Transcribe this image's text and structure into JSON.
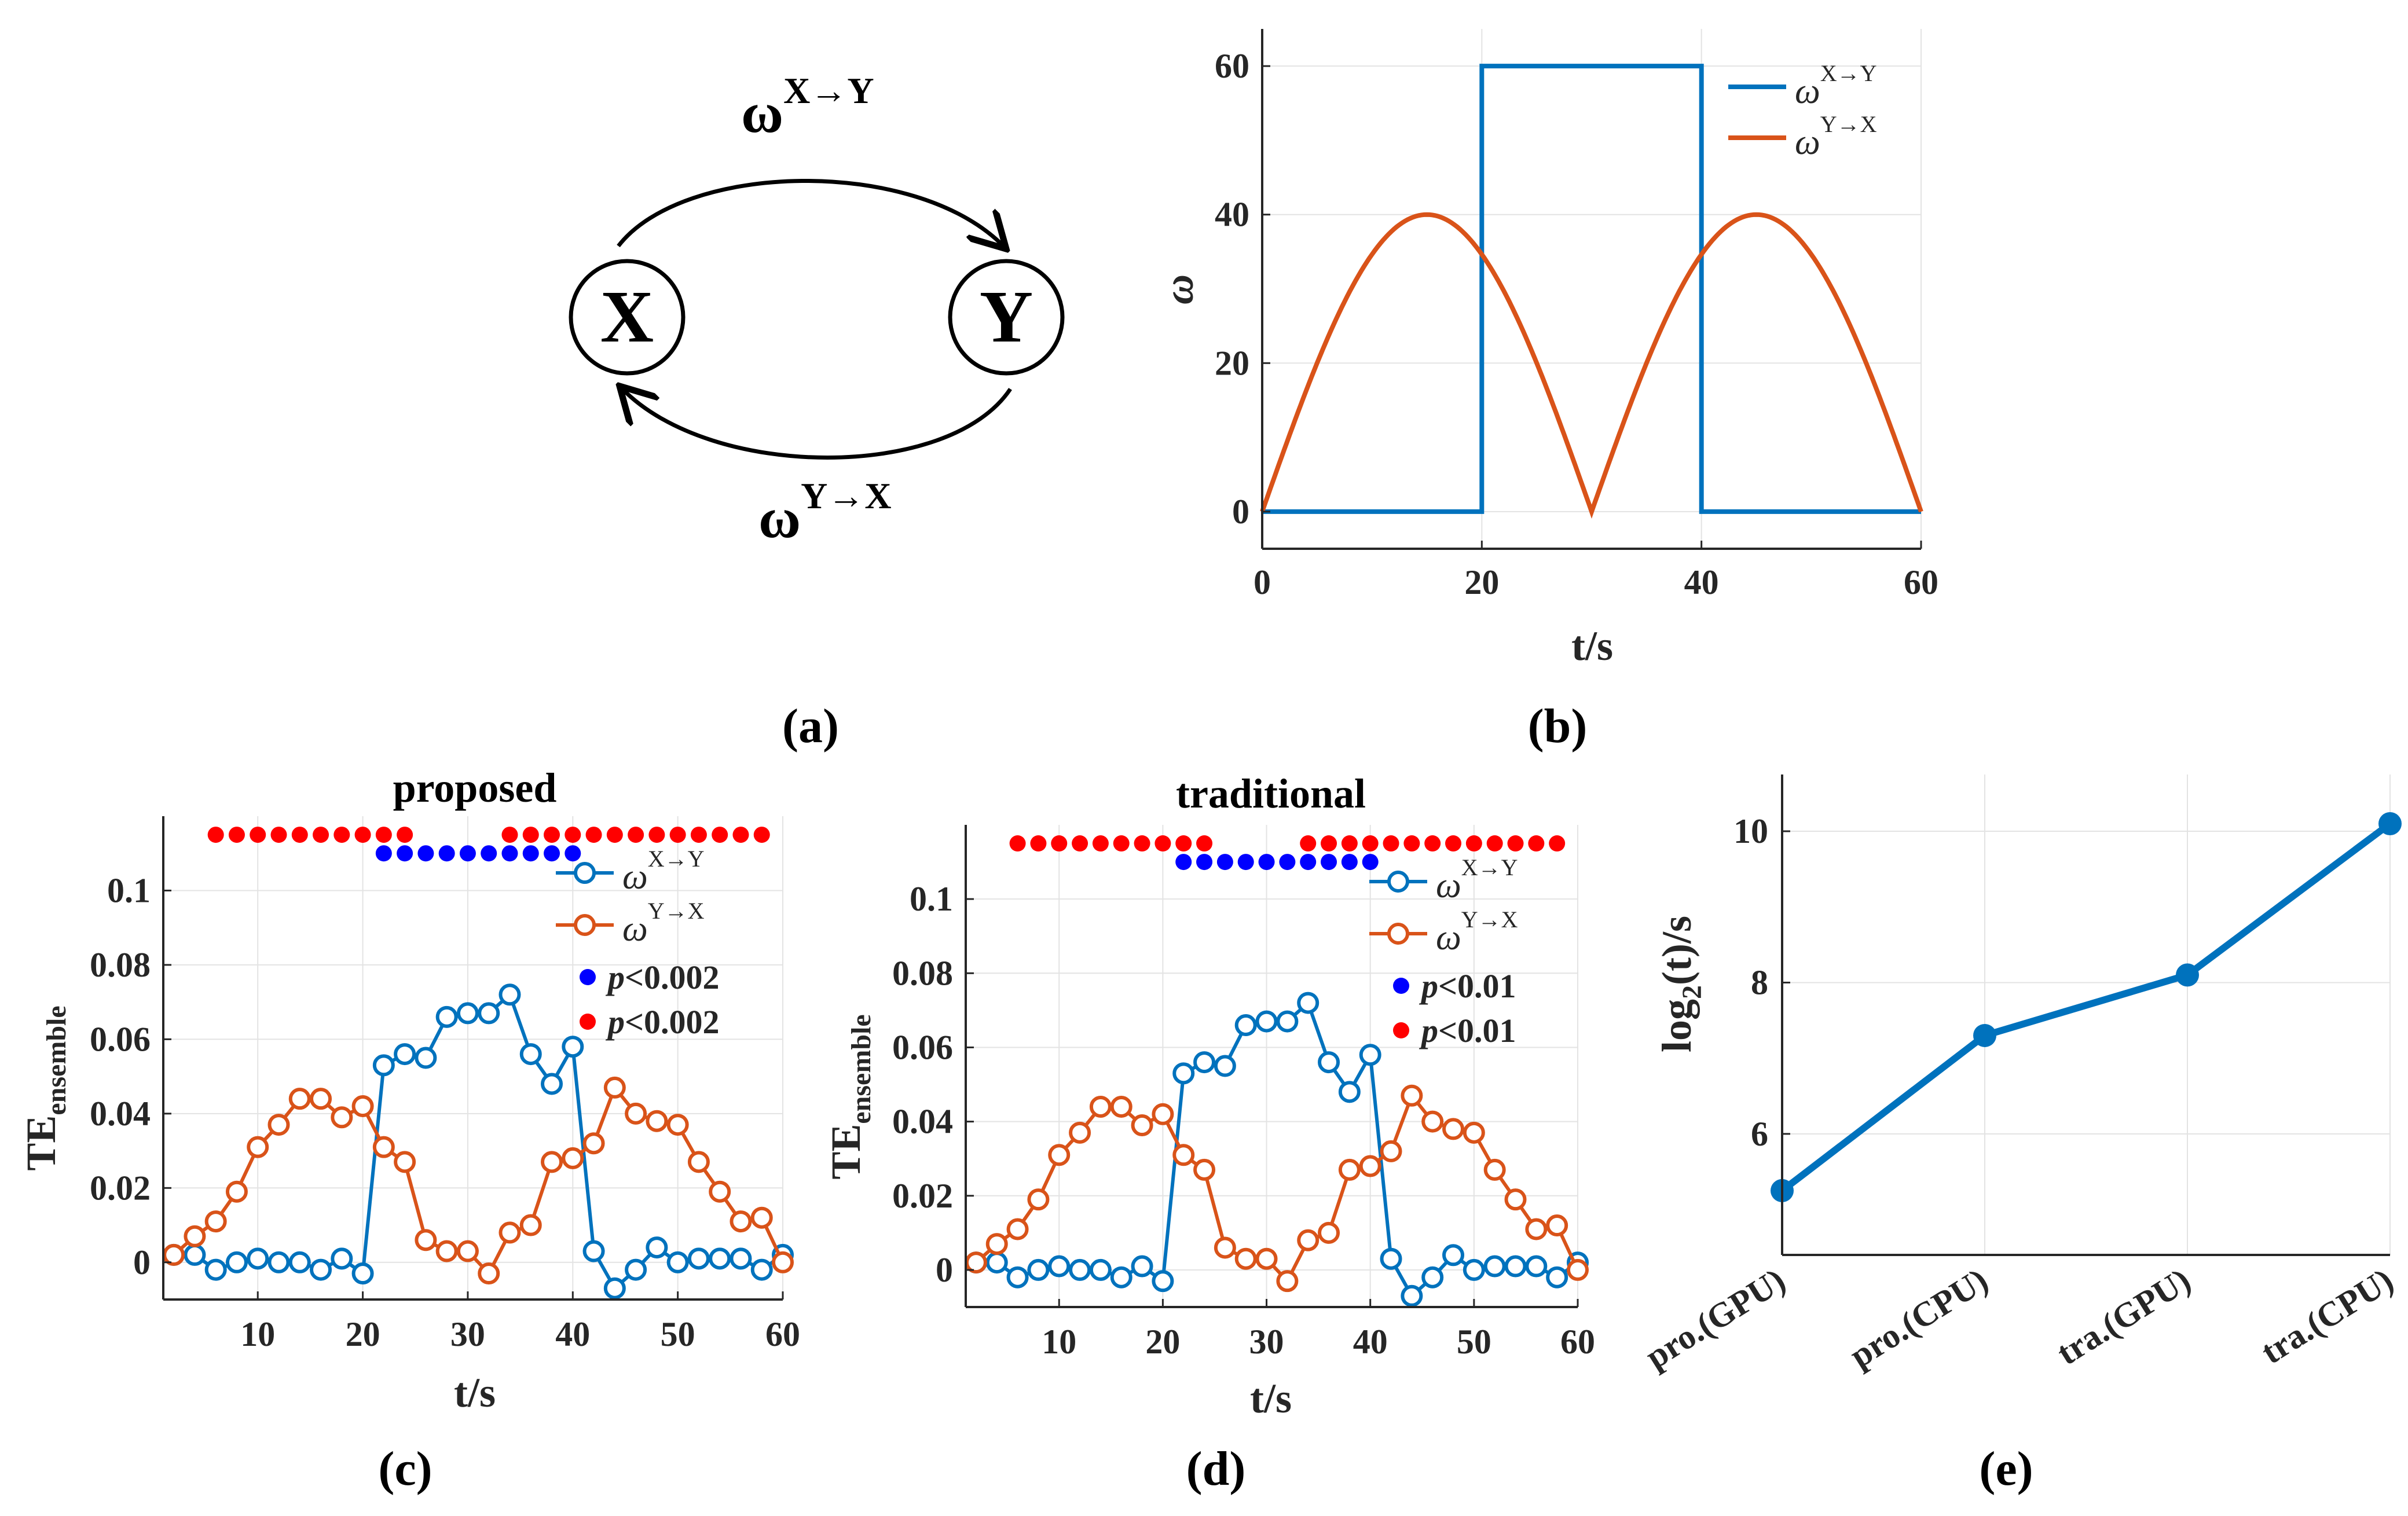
{
  "colors": {
    "blue": "#0072BD",
    "orange": "#D95319",
    "dot_blue": "#0000FF",
    "dot_red": "#FF0000"
  },
  "diagram": {
    "node_x": "X",
    "node_y": "Y",
    "label_top": {
      "base": "ω",
      "sup": "X→Y"
    },
    "label_bottom": {
      "base": "ω",
      "sup": "Y→X"
    },
    "caption": "(a)"
  },
  "chart_data": [
    {
      "id": "b",
      "type": "line",
      "caption": "(b)",
      "title": "",
      "xlabel": "t/s",
      "ylabel": "ω",
      "xlim": [
        0,
        60
      ],
      "ylim": [
        -5,
        65
      ],
      "xticks": [
        0,
        20,
        40,
        60
      ],
      "yticks": [
        0,
        20,
        40,
        60
      ],
      "series": [
        {
          "name_base": "ω",
          "name_sup": "X→Y",
          "color": "#0072BD",
          "x": [
            0,
            20,
            20,
            40,
            40,
            60
          ],
          "y": [
            0,
            0,
            60,
            60,
            0,
            0
          ]
        },
        {
          "name_base": "ω",
          "name_sup": "Y→X",
          "color": "#D95319",
          "function": "40*|sin(pi*t/30)|",
          "x_range": [
            0,
            60
          ]
        }
      ]
    },
    {
      "id": "c",
      "type": "line",
      "caption": "(c)",
      "title": "proposed",
      "xlabel": "t/s",
      "ylabel_base": "TE",
      "ylabel_sub": "ensemble",
      "xlim": [
        1,
        60
      ],
      "ylim": [
        -0.01,
        0.12
      ],
      "xticks": [
        10,
        20,
        30,
        40,
        50,
        60
      ],
      "yticks": [
        0,
        0.02,
        0.04,
        0.06,
        0.08,
        0.1
      ],
      "ytick_labels": [
        "0",
        "0.02",
        "0.04",
        "0.06",
        "0.08",
        "0.1"
      ],
      "x": [
        2,
        4,
        6,
        8,
        10,
        12,
        14,
        16,
        18,
        20,
        22,
        24,
        26,
        28,
        30,
        32,
        34,
        36,
        38,
        40,
        42,
        44,
        46,
        48,
        50,
        52,
        54,
        56,
        58,
        60
      ],
      "series": [
        {
          "name_base": "ω",
          "name_sup": "X→Y",
          "color": "#0072BD",
          "values": [
            0.002,
            0.002,
            -0.002,
            0,
            0.001,
            0,
            0,
            -0.002,
            0.001,
            -0.003,
            0.053,
            0.056,
            0.055,
            0.066,
            0.067,
            0.067,
            0.072,
            0.056,
            0.048,
            0.058,
            0.003,
            -0.007,
            -0.002,
            0.004,
            0,
            0.001,
            0.001,
            0.001,
            -0.002,
            0.002
          ]
        },
        {
          "name_base": "ω",
          "name_sup": "Y→X",
          "color": "#D95319",
          "values": [
            0.002,
            0.007,
            0.011,
            0.019,
            0.031,
            0.037,
            0.044,
            0.044,
            0.039,
            0.042,
            0.031,
            0.027,
            0.006,
            0.003,
            0.003,
            -0.003,
            0.008,
            0.01,
            0.027,
            0.028,
            0.032,
            0.047,
            0.04,
            0.038,
            0.037,
            0.027,
            0.019,
            0.011,
            0.012,
            0
          ]
        }
      ],
      "sig_legend": [
        {
          "label_italic": "p",
          "label_rest": "<0.002",
          "color": "#0000FF"
        },
        {
          "label_italic": "p",
          "label_rest": "<0.002",
          "color": "#FF0000"
        }
      ],
      "sig_red_x": [
        6,
        8,
        10,
        12,
        14,
        16,
        18,
        20,
        22,
        24,
        34,
        36,
        38,
        40,
        42,
        44,
        46,
        48,
        50,
        52,
        54,
        56,
        58
      ],
      "sig_red_y": 0.115,
      "sig_blue_x": [
        22,
        24,
        26,
        28,
        30,
        32,
        34,
        36,
        38,
        40
      ],
      "sig_blue_y": 0.11
    },
    {
      "id": "d",
      "type": "line",
      "caption": "(d)",
      "title": "traditional",
      "xlabel": "t/s",
      "ylabel_base": "TE",
      "ylabel_sub": "ensemble",
      "xlim": [
        1,
        60
      ],
      "ylim": [
        -0.01,
        0.12
      ],
      "xticks": [
        10,
        20,
        30,
        40,
        50,
        60
      ],
      "yticks": [
        0,
        0.02,
        0.04,
        0.06,
        0.08,
        0.1
      ],
      "ytick_labels": [
        "0",
        "0.02",
        "0.04",
        "0.06",
        "0.08",
        "0.1"
      ],
      "x": [
        2,
        4,
        6,
        8,
        10,
        12,
        14,
        16,
        18,
        20,
        22,
        24,
        26,
        28,
        30,
        32,
        34,
        36,
        38,
        40,
        42,
        44,
        46,
        48,
        50,
        52,
        54,
        56,
        58,
        60
      ],
      "series": [
        {
          "name_base": "ω",
          "name_sup": "X→Y",
          "color": "#0072BD",
          "values": [
            0.002,
            0.002,
            -0.002,
            0,
            0.001,
            0,
            0,
            -0.002,
            0.001,
            -0.003,
            0.053,
            0.056,
            0.055,
            0.066,
            0.067,
            0.067,
            0.072,
            0.056,
            0.048,
            0.058,
            0.003,
            -0.007,
            -0.002,
            0.004,
            0,
            0.001,
            0.001,
            0.001,
            -0.002,
            0.002
          ]
        },
        {
          "name_base": "ω",
          "name_sup": "Y→X",
          "color": "#D95319",
          "values": [
            0.002,
            0.007,
            0.011,
            0.019,
            0.031,
            0.037,
            0.044,
            0.044,
            0.039,
            0.042,
            0.031,
            0.027,
            0.006,
            0.003,
            0.003,
            -0.003,
            0.008,
            0.01,
            0.027,
            0.028,
            0.032,
            0.047,
            0.04,
            0.038,
            0.037,
            0.027,
            0.019,
            0.011,
            0.012,
            0
          ]
        }
      ],
      "sig_legend": [
        {
          "label_italic": "p",
          "label_rest": "<0.01",
          "color": "#0000FF"
        },
        {
          "label_italic": "p",
          "label_rest": "<0.01",
          "color": "#FF0000"
        }
      ],
      "sig_red_x": [
        6,
        8,
        10,
        12,
        14,
        16,
        18,
        20,
        22,
        24,
        34,
        36,
        38,
        40,
        42,
        44,
        46,
        48,
        50,
        52,
        54,
        56,
        58
      ],
      "sig_red_y": 0.115,
      "sig_blue_x": [
        22,
        24,
        26,
        28,
        30,
        32,
        34,
        36,
        38,
        40
      ],
      "sig_blue_y": 0.11
    },
    {
      "id": "e",
      "type": "line",
      "caption": "(e)",
      "title": "",
      "ylabel_pre": "log",
      "ylabel_sub": "2",
      "ylabel_post": "(t)/s",
      "categories": [
        "pro.(GPU)",
        "pro.(CPU)",
        "tra.(GPU)",
        "tra.(CPU)"
      ],
      "values": [
        5.25,
        7.3,
        8.1,
        10.1
      ],
      "ylim": [
        4.4,
        10.75
      ],
      "yticks": [
        6,
        8,
        10
      ],
      "color": "#0072BD"
    }
  ]
}
